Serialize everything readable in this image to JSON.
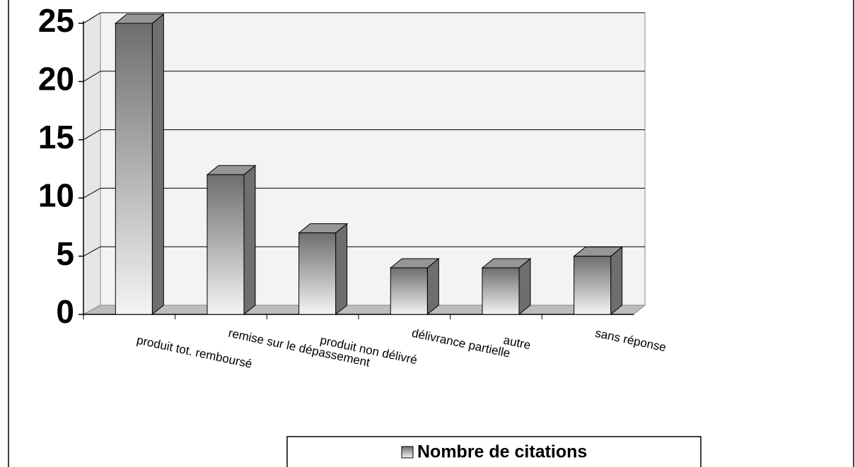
{
  "chart_data": {
    "type": "bar3d",
    "categories": [
      "produit tot. remboursé",
      "remise sur le dépassement",
      "produit non délivré",
      "délivrance partielle",
      "autre",
      "sans réponse"
    ],
    "series": [
      {
        "name": "Nombre de citations",
        "color": "#6e6e6e",
        "values": [
          25,
          12,
          7,
          4,
          4,
          5
        ]
      }
    ],
    "ylim": [
      0,
      25
    ],
    "yticks": [
      0,
      5,
      10,
      15,
      20,
      25
    ],
    "grid": true,
    "legend": "bottom"
  }
}
